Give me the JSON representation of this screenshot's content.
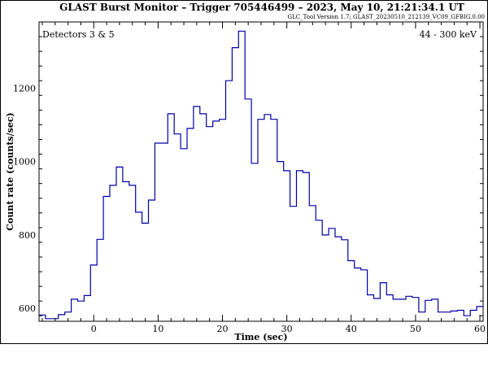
{
  "chart_data": {
    "type": "line",
    "title": "GLAST Burst Monitor  –  Trigger 705446499  –  2023, May 10, 21:21:34.1 UT",
    "subtitle": "GLC_Tool Version 1.7; GLAST_20230510_212139_VC09_GFBIG.0.00",
    "detector_label": "Detectors 3 & 5",
    "energy_label": "44 - 300 keV",
    "xlabel": "Time (sec)",
    "ylabel": "Count rate (counts/sec)",
    "xlim": [
      -8.5,
      60.5
    ],
    "ylim": [
      565,
      1380
    ],
    "xticks": [
      "0",
      "10",
      "20",
      "30",
      "40",
      "50",
      "60"
    ],
    "yticks": [
      "600",
      "800",
      "1000",
      "1200"
    ],
    "background_level": 565,
    "grid": false,
    "step_edges": [
      -8.5,
      -7.5,
      -6.5,
      -5.5,
      -4.5,
      -3.5,
      -2.5,
      -1.5,
      -0.5,
      0.5,
      1.5,
      2.5,
      3.5,
      4.5,
      5.5,
      6.5,
      7.5,
      8.5,
      9.5,
      10.5,
      11.5,
      12.5,
      13.5,
      14.5,
      15.5,
      16.5,
      17.5,
      18.5,
      19.5,
      20.5,
      21.5,
      22.5,
      23.5,
      24.5,
      25.5,
      26.5,
      27.5,
      28.5,
      29.5,
      30.5,
      31.5,
      32.5,
      33.5,
      34.5,
      35.5,
      36.5,
      37.5,
      38.5,
      39.5,
      40.5,
      41.5,
      42.5,
      43.5,
      44.5,
      45.5,
      46.5,
      47.5,
      48.5,
      49.5,
      50.5,
      51.5,
      52.5,
      53.5,
      54.5,
      55.5,
      56.5,
      57.5,
      58.5,
      59.5,
      60.5
    ],
    "values": [
      582,
      572,
      572,
      583,
      590,
      625,
      620,
      635,
      718,
      788,
      905,
      935,
      985,
      945,
      935,
      862,
      832,
      895,
      1050,
      1050,
      1130,
      1075,
      1035,
      1090,
      1150,
      1130,
      1095,
      1110,
      1115,
      1220,
      1310,
      1355,
      1170,
      995,
      1115,
      1128,
      1115,
      1000,
      975,
      878,
      975,
      970,
      880,
      840,
      800,
      818,
      795,
      787,
      730,
      710,
      705,
      637,
      627,
      670,
      637,
      625,
      625,
      633,
      630,
      590,
      622,
      625,
      590,
      590,
      593,
      595,
      580,
      595,
      605
    ]
  }
}
